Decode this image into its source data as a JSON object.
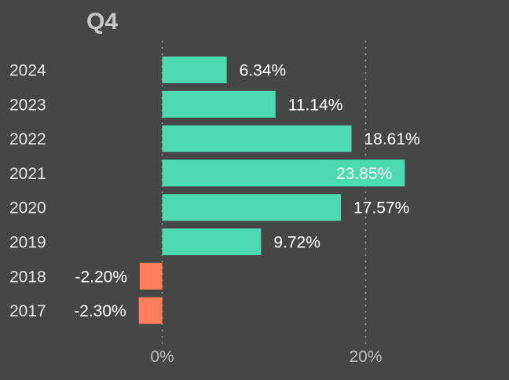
{
  "chart_data": {
    "type": "bar",
    "orientation": "horizontal",
    "title": "Q4",
    "categories": [
      "2024",
      "2023",
      "2022",
      "2021",
      "2020",
      "2019",
      "2018",
      "2017"
    ],
    "values": [
      6.34,
      11.14,
      18.61,
      23.85,
      17.57,
      9.72,
      -2.2,
      -2.3
    ],
    "value_labels": [
      "6.34%",
      "11.14%",
      "18.61%",
      "23.85%",
      "17.57%",
      "9.72%",
      "-2.20%",
      "-2.30%"
    ],
    "xticks": [
      {
        "value": 0,
        "label": "0%"
      },
      {
        "value": 20,
        "label": "20%"
      }
    ],
    "xlim": [
      -3,
      33
    ],
    "grid": "vertical dotted at ticks",
    "colors": {
      "background": "#464646",
      "positive": "#4cdbb0",
      "negative": "#ff7f5a"
    }
  }
}
